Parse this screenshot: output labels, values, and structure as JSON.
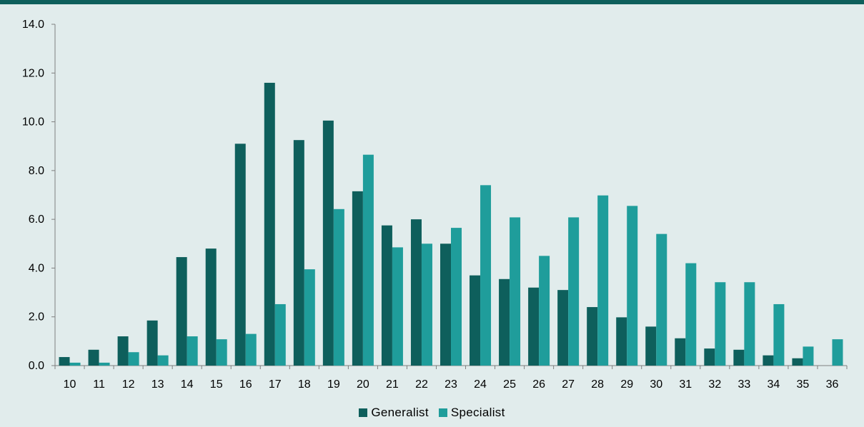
{
  "colors": {
    "topbar": "#0e5f5c",
    "background": "#e1ecec",
    "generalist": "#0e5f5c",
    "specialist": "#1f9d9b"
  },
  "chart_data": {
    "type": "bar",
    "title": "",
    "xlabel": "",
    "ylabel": "",
    "ylim": [
      0,
      14
    ],
    "yticks": [
      "0.0",
      "2.0",
      "4.0",
      "6.0",
      "8.0",
      "10.0",
      "12.0",
      "14.0"
    ],
    "grid": false,
    "legend_position": "bottom",
    "categories": [
      "10",
      "11",
      "12",
      "13",
      "14",
      "15",
      "16",
      "17",
      "18",
      "19",
      "20",
      "21",
      "22",
      "23",
      "24",
      "25",
      "26",
      "27",
      "28",
      "29",
      "30",
      "31",
      "32",
      "33",
      "34",
      "35",
      "36"
    ],
    "series": [
      {
        "name": "Generalist",
        "color": "#0e5f5c",
        "values": [
          0.35,
          0.65,
          1.2,
          1.85,
          4.45,
          4.8,
          9.1,
          11.6,
          9.25,
          10.05,
          7.15,
          5.75,
          6.0,
          5.0,
          3.7,
          3.55,
          3.2,
          3.1,
          2.4,
          1.98,
          1.6,
          1.12,
          0.7,
          0.65,
          0.42,
          0.3,
          0
        ]
      },
      {
        "name": "Specialist",
        "color": "#1f9d9b",
        "values": [
          0.12,
          0.12,
          0.55,
          0.42,
          1.2,
          1.08,
          1.3,
          2.52,
          3.95,
          6.42,
          8.65,
          4.85,
          5.0,
          5.65,
          7.4,
          6.08,
          4.5,
          6.08,
          6.98,
          6.55,
          5.4,
          4.2,
          3.42,
          3.42,
          2.52,
          0.78,
          1.08
        ]
      }
    ]
  }
}
